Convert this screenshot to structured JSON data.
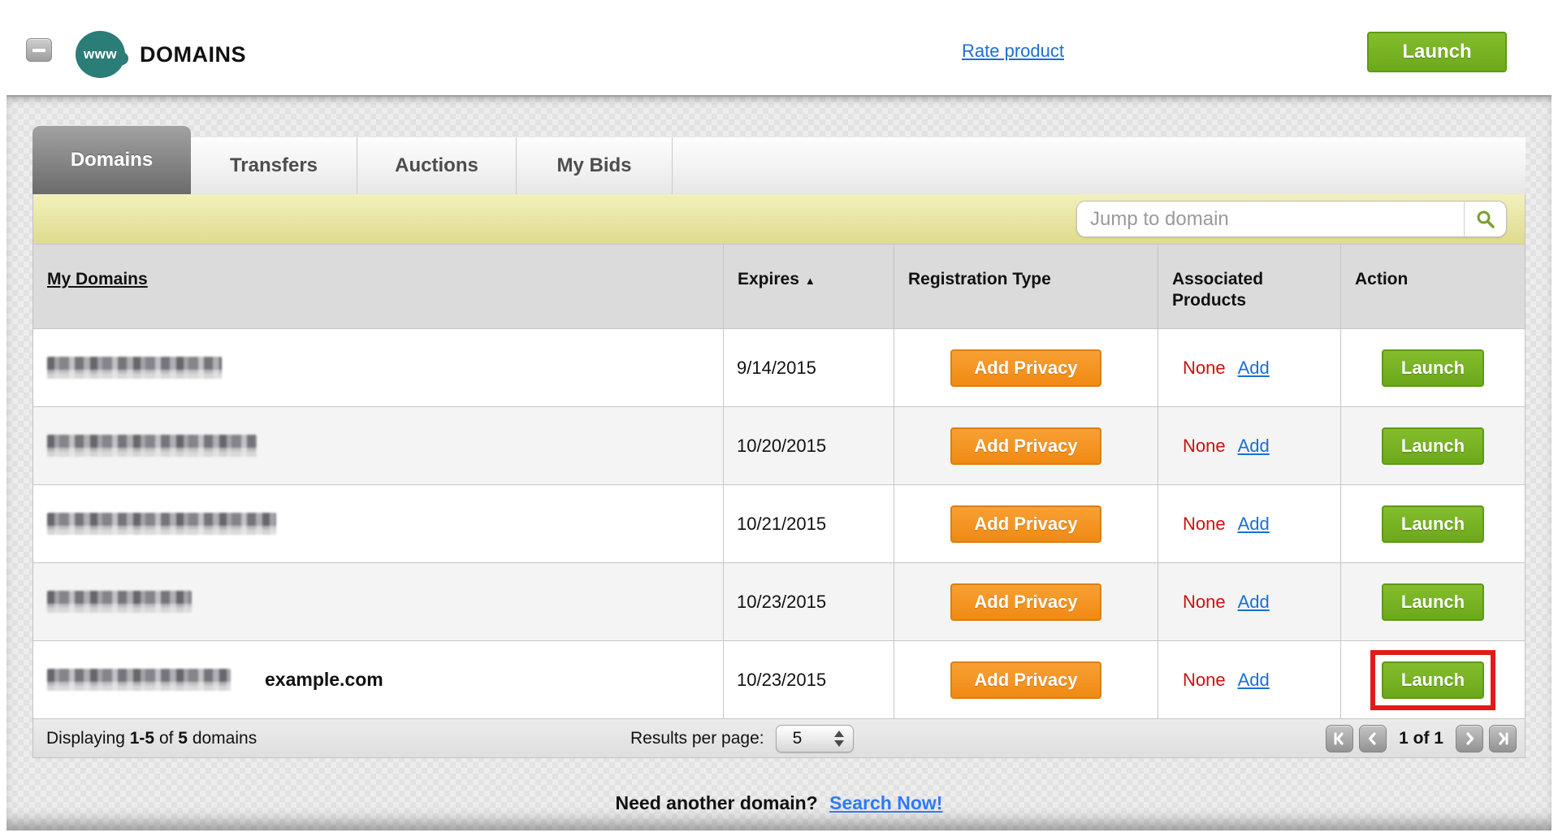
{
  "header": {
    "app_label": "www",
    "title": "DOMAINS",
    "rate_link": "Rate product",
    "launch_button": "Launch"
  },
  "tabs": [
    {
      "label": "Domains",
      "active": true
    },
    {
      "label": "Transfers",
      "active": false
    },
    {
      "label": "Auctions",
      "active": false
    },
    {
      "label": "My Bids",
      "active": false
    }
  ],
  "search": {
    "placeholder": "Jump to domain"
  },
  "table": {
    "columns": {
      "domains": "My Domains",
      "expires": "Expires",
      "expires_sort_icon": "▲",
      "registration": "Registration Type",
      "associated_line1": "Associated",
      "associated_line2": "Products",
      "action": "Action"
    },
    "rows": [
      {
        "domain_redacted": true,
        "blur_width": 215,
        "annotation": "",
        "expires": "9/14/2015",
        "registration_button": "Add Privacy",
        "associated_value": "None",
        "associated_link": "Add",
        "action_button": "Launch",
        "highlighted": false
      },
      {
        "domain_redacted": true,
        "blur_width": 258,
        "annotation": "",
        "expires": "10/20/2015",
        "registration_button": "Add Privacy",
        "associated_value": "None",
        "associated_link": "Add",
        "action_button": "Launch",
        "highlighted": false
      },
      {
        "domain_redacted": true,
        "blur_width": 282,
        "annotation": "",
        "expires": "10/21/2015",
        "registration_button": "Add Privacy",
        "associated_value": "None",
        "associated_link": "Add",
        "action_button": "Launch",
        "highlighted": false
      },
      {
        "domain_redacted": true,
        "blur_width": 178,
        "annotation": "",
        "expires": "10/23/2015",
        "registration_button": "Add Privacy",
        "associated_value": "None",
        "associated_link": "Add",
        "action_button": "Launch",
        "highlighted": false
      },
      {
        "domain_redacted": true,
        "blur_width": 226,
        "annotation": "example.com",
        "expires": "10/23/2015",
        "registration_button": "Add Privacy",
        "associated_value": "None",
        "associated_link": "Add",
        "action_button": "Launch",
        "highlighted": true
      }
    ]
  },
  "footer": {
    "displaying_word": "Displaying",
    "range": "1-5",
    "of_word": "of",
    "total": "5",
    "domains_word": "domains",
    "results_label": "Results per page:",
    "results_value": "5",
    "page_status": "1 of 1"
  },
  "bottom": {
    "prompt": "Need another domain?",
    "link": "Search Now!"
  },
  "colors": {
    "accent_green": "#6ca91a",
    "accent_orange": "#f08a12",
    "status_red": "#cc1111",
    "link_blue": "#1b6fd6",
    "brand_teal": "#2b7d77",
    "highlight_red": "#e31a1a"
  },
  "icons": {
    "collapse": "minus-icon",
    "brand": "www-globe-icon",
    "search": "magnifier-icon",
    "sort": "sort-asc-icon",
    "pagination": [
      "first-page-icon",
      "prev-page-icon",
      "next-page-icon",
      "last-page-icon"
    ],
    "select": "up-down-arrows-icon"
  }
}
